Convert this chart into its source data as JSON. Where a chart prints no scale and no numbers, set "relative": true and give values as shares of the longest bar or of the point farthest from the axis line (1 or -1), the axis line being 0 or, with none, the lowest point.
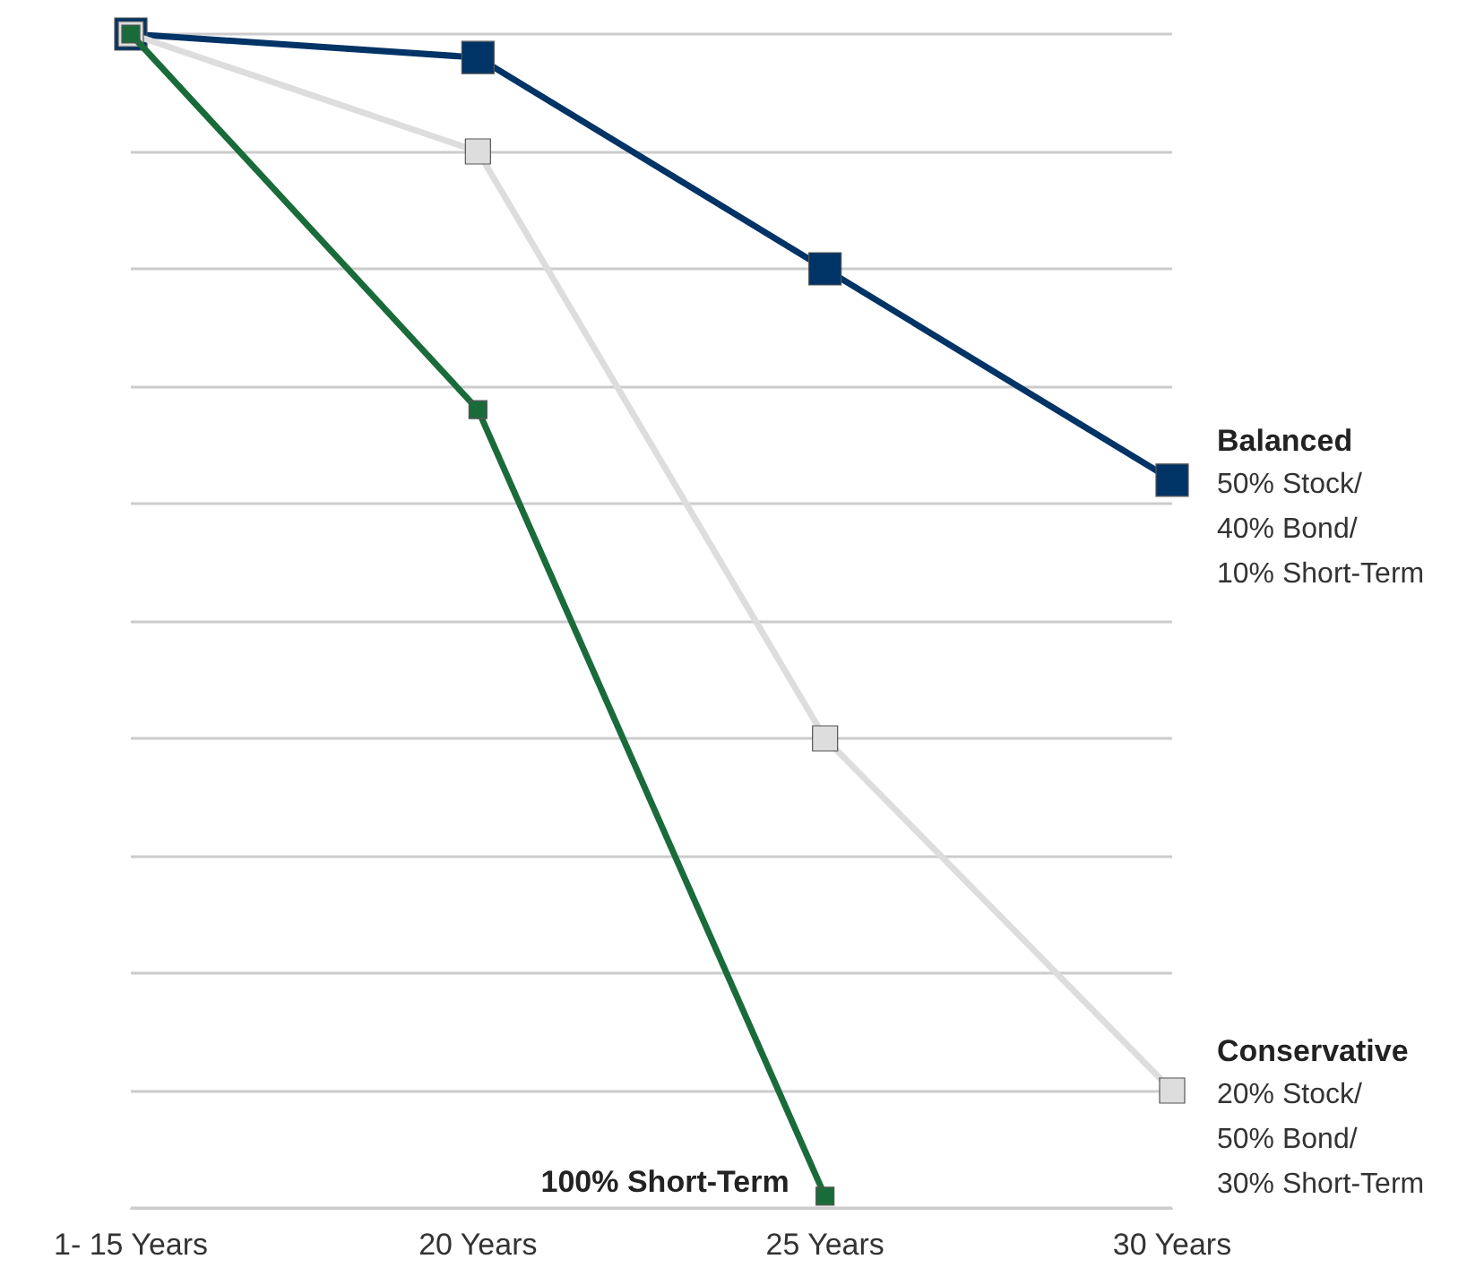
{
  "chart_data": {
    "type": "line",
    "relative": true,
    "categories": [
      "1- 15 Years",
      "20 Years",
      "25 Years",
      "30 Years"
    ],
    "series": [
      {
        "name": "Balanced",
        "color": "#003366",
        "values": [
          1,
          0.98,
          0.8,
          0.62
        ]
      },
      {
        "name": "Conservative",
        "color": "#dddddd",
        "values": [
          1,
          0.9,
          0.4,
          0.1
        ]
      },
      {
        "name": "100% Short-Term",
        "color": "#1a6b3a",
        "values": [
          1,
          0.68,
          0.01,
          null
        ]
      }
    ],
    "annotations": [
      {
        "text": "50% Stock/\n40% Bond/\n10% Short-Term",
        "x": "30 Years",
        "y": 0.62
      },
      {
        "text": "20% Stock/\n50% Bond/\n30% Short-Term",
        "x": "30 Years",
        "y": 0.1
      }
    ],
    "grid": "y",
    "legend": false,
    "marker": "square",
    "line_style": "solid"
  }
}
